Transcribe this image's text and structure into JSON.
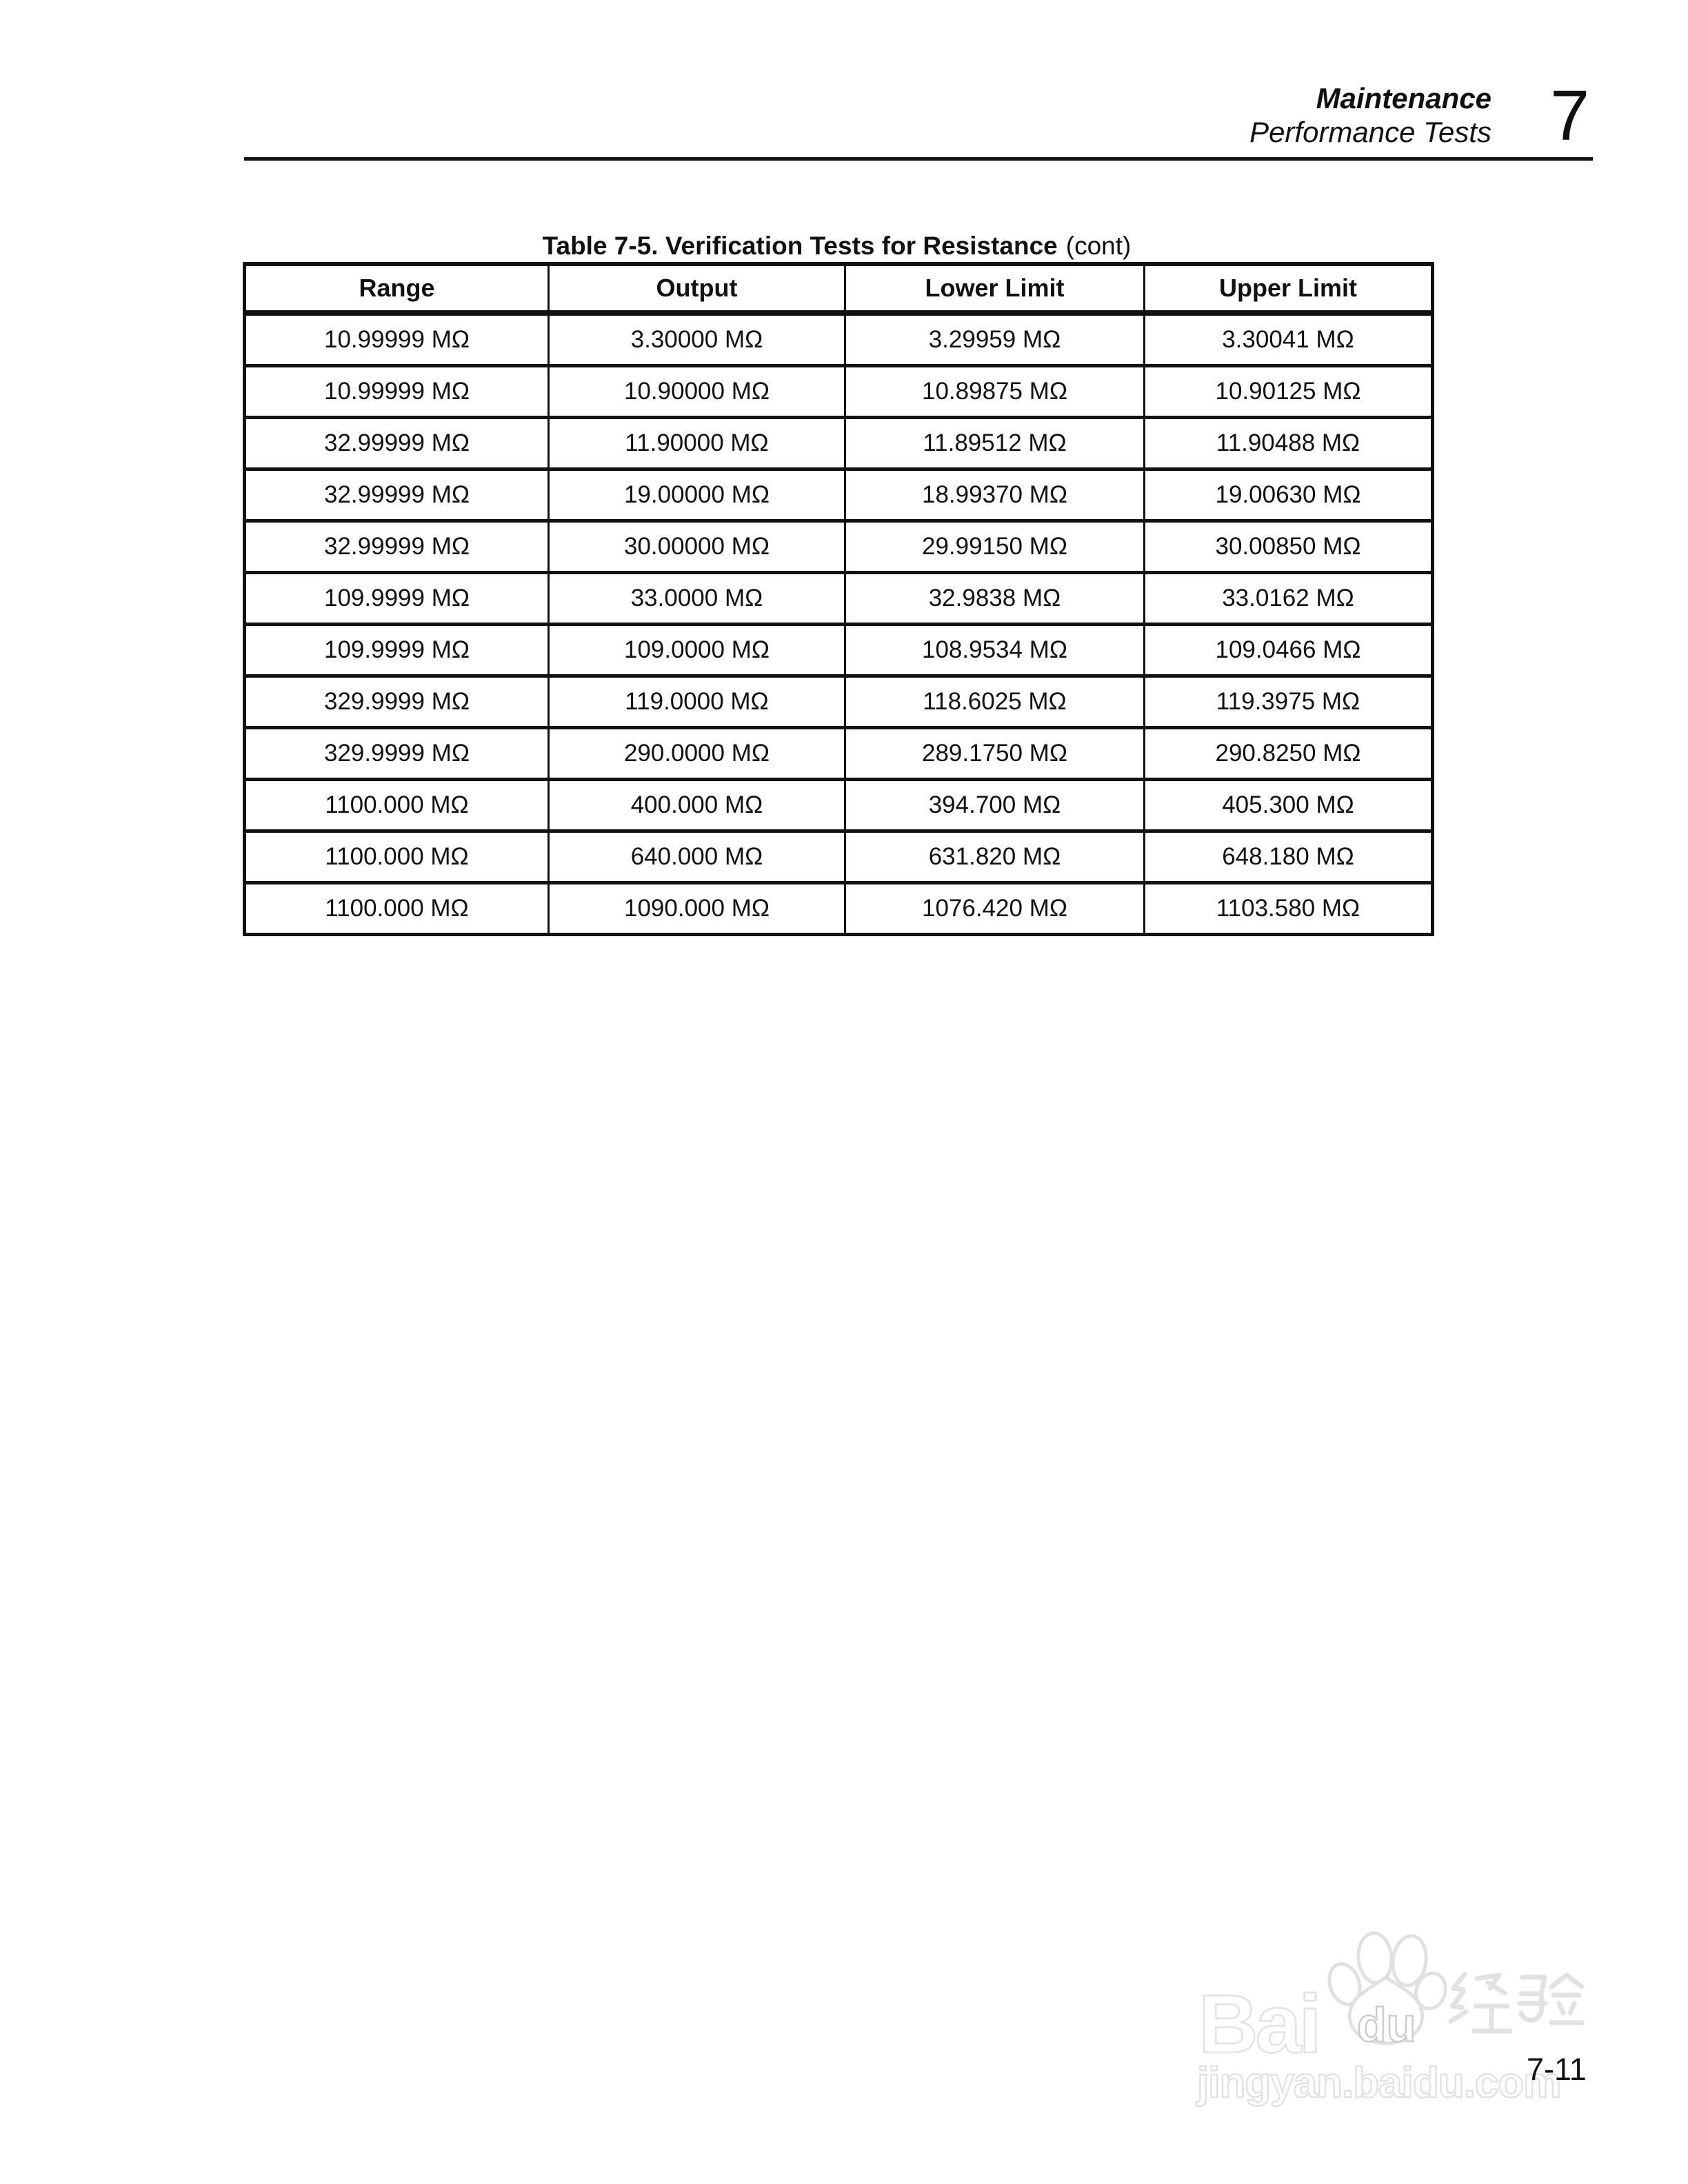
{
  "header": {
    "section": "Maintenance",
    "subsection": "Performance Tests",
    "chapter_number": "7"
  },
  "table_title": {
    "main": "Table 7-5. Verification Tests for Resistance",
    "suffix": "(cont)"
  },
  "table": {
    "columns": [
      "Range",
      "Output",
      "Lower Limit",
      "Upper Limit"
    ],
    "rows": [
      [
        "10.99999 MΩ",
        "3.30000 MΩ",
        "3.29959 MΩ",
        "3.30041 MΩ"
      ],
      [
        "10.99999 MΩ",
        "10.90000 MΩ",
        "10.89875 MΩ",
        "10.90125 MΩ"
      ],
      [
        "32.99999 MΩ",
        "11.90000 MΩ",
        "11.89512 MΩ",
        "11.90488 MΩ"
      ],
      [
        "32.99999 MΩ",
        "19.00000 MΩ",
        "18.99370 MΩ",
        "19.00630 MΩ"
      ],
      [
        "32.99999 MΩ",
        "30.00000 MΩ",
        "29.99150 MΩ",
        "30.00850 MΩ"
      ],
      [
        "109.9999 MΩ",
        "33.0000 MΩ",
        "32.9838 MΩ",
        "33.0162 MΩ"
      ],
      [
        "109.9999 MΩ",
        "109.0000 MΩ",
        "108.9534 MΩ",
        "109.0466 MΩ"
      ],
      [
        "329.9999 MΩ",
        "119.0000 MΩ",
        "118.6025 MΩ",
        "119.3975 MΩ"
      ],
      [
        "329.9999 MΩ",
        "290.0000 MΩ",
        "289.1750 MΩ",
        "290.8250 MΩ"
      ],
      [
        "1100.000 MΩ",
        "400.000 MΩ",
        "394.700 MΩ",
        "405.300 MΩ"
      ],
      [
        "1100.000 MΩ",
        "640.000 MΩ",
        "631.820 MΩ",
        "648.180 MΩ"
      ],
      [
        "1100.000 MΩ",
        "1090.000 MΩ",
        "1076.420 MΩ",
        "1103.580 MΩ"
      ]
    ]
  },
  "footer": {
    "page_number": "7-11"
  },
  "watermark": {
    "brand_latin": "Bai",
    "brand_du": "du",
    "brand_cjk": "经验",
    "site_url": "jingyan.baidu.com"
  },
  "colors": {
    "text": "#111111",
    "table_border": "#111111",
    "watermark_outline": "#e2e2e2"
  }
}
